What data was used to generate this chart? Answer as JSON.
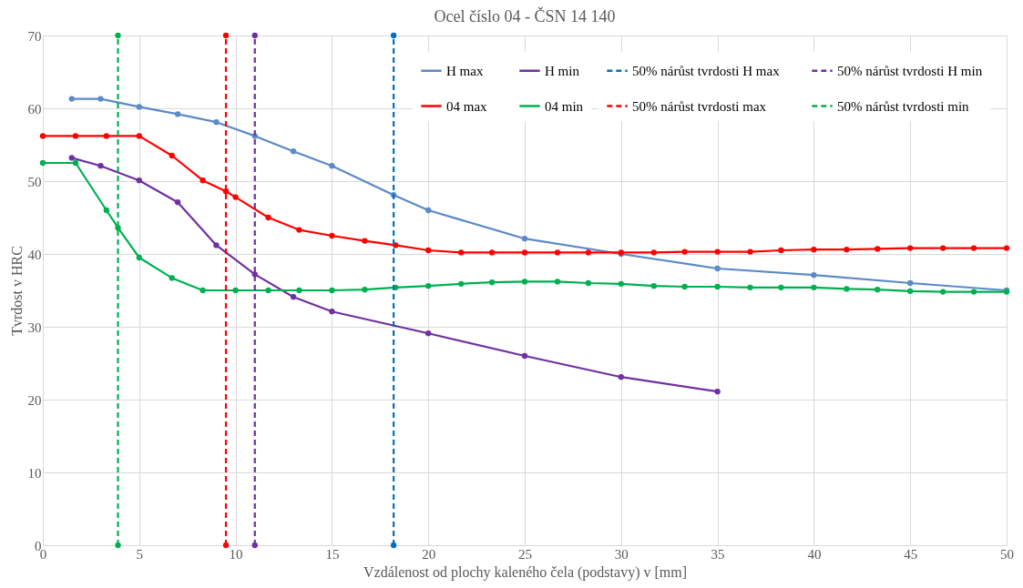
{
  "chart_data": {
    "type": "line",
    "title": "Ocel číslo 04 - ČSN 14 140",
    "xlabel": "Vzdálenost od plochy kaleného čela (podstavy) v [mm]",
    "ylabel": "Tvrdost  v HRC",
    "xlim": [
      0,
      50
    ],
    "xticks": [
      0,
      5,
      10,
      15,
      20,
      25,
      30,
      35,
      40,
      45,
      50
    ],
    "ylim": [
      0,
      70
    ],
    "yticks": [
      0,
      10,
      20,
      30,
      40,
      50,
      60,
      70
    ],
    "grid": true,
    "legend": "top right",
    "marker": "circle",
    "series": [
      {
        "name": "H max",
        "color": "#5b8ac6",
        "line_style": "solid",
        "x": [
          1.5,
          3,
          5,
          7,
          9,
          11,
          13,
          15,
          18.2,
          20,
          25,
          30,
          35,
          40,
          45,
          50
        ],
        "values": [
          61.3,
          61.3,
          60.2,
          59.2,
          58.1,
          56.2,
          54.1,
          52.1,
          48.1,
          46,
          42.1,
          40,
          38,
          37.1,
          36,
          35
        ]
      },
      {
        "name": "H min",
        "color": "#7030a0",
        "line_style": "solid",
        "x": [
          1.5,
          3,
          5,
          7,
          9,
          11,
          13,
          15,
          20,
          25,
          30,
          35
        ],
        "values": [
          53.2,
          52.1,
          50.1,
          47.1,
          41.2,
          37.2,
          34.1,
          32.1,
          29.1,
          26,
          23.1,
          21.1
        ]
      },
      {
        "name": "50% nárůst tvrdosti H max",
        "color": "#0070c0",
        "line_style": "dashed",
        "x": [
          18.2,
          18.2
        ],
        "values": [
          0,
          70
        ]
      },
      {
        "name": "50% nárůst tvrdosti H min",
        "color": "#7030a0",
        "line_style": "dashed",
        "x": [
          11,
          11
        ],
        "values": [
          0,
          70
        ]
      },
      {
        "name": "04 max",
        "color": "#ff0000",
        "line_style": "solid",
        "x": [
          0,
          1.7,
          3.3,
          5,
          6.7,
          8.3,
          9.5,
          10,
          11.7,
          13.3,
          15,
          16.7,
          18.3,
          20,
          21.7,
          23.3,
          25,
          26.7,
          28.3,
          30,
          31.7,
          33.3,
          35,
          36.7,
          38.3,
          40,
          41.7,
          43.3,
          45,
          46.7,
          48.3,
          50
        ],
        "values": [
          56.2,
          56.2,
          56.2,
          56.2,
          53.5,
          50.1,
          48.6,
          47.8,
          45,
          43.3,
          42.5,
          41.8,
          41.2,
          40.5,
          40.2,
          40.2,
          40.2,
          40.2,
          40.2,
          40.2,
          40.2,
          40.3,
          40.3,
          40.3,
          40.5,
          40.6,
          40.6,
          40.7,
          40.8,
          40.8,
          40.8,
          40.8
        ]
      },
      {
        "name": "04 min",
        "color": "#00b050",
        "line_style": "solid",
        "x": [
          0,
          1.7,
          3.3,
          3.9,
          5,
          6.7,
          8.3,
          10,
          11.7,
          13.3,
          15,
          16.7,
          18.3,
          20,
          21.7,
          23.3,
          25,
          26.7,
          28.3,
          30,
          31.7,
          33.3,
          35,
          36.7,
          38.3,
          40,
          41.7,
          43.3,
          45,
          46.7,
          48.3,
          50
        ],
        "values": [
          52.5,
          52.5,
          46,
          43.6,
          39.5,
          36.7,
          35,
          35,
          35,
          35,
          35,
          35.1,
          35.4,
          35.6,
          35.9,
          36.1,
          36.2,
          36.2,
          36,
          35.9,
          35.6,
          35.5,
          35.5,
          35.4,
          35.4,
          35.4,
          35.2,
          35.1,
          34.9,
          34.8,
          34.8,
          34.8
        ]
      },
      {
        "name": "50% nárůst tvrdosti max",
        "color": "#ff0000",
        "line_style": "dashed",
        "x": [
          9.5,
          9.5
        ],
        "values": [
          0,
          70
        ]
      },
      {
        "name": "50% nárůst tvrdosti min",
        "color": "#00b050",
        "line_style": "dashed",
        "x": [
          3.9,
          3.9
        ],
        "values": [
          0,
          70
        ]
      }
    ]
  }
}
